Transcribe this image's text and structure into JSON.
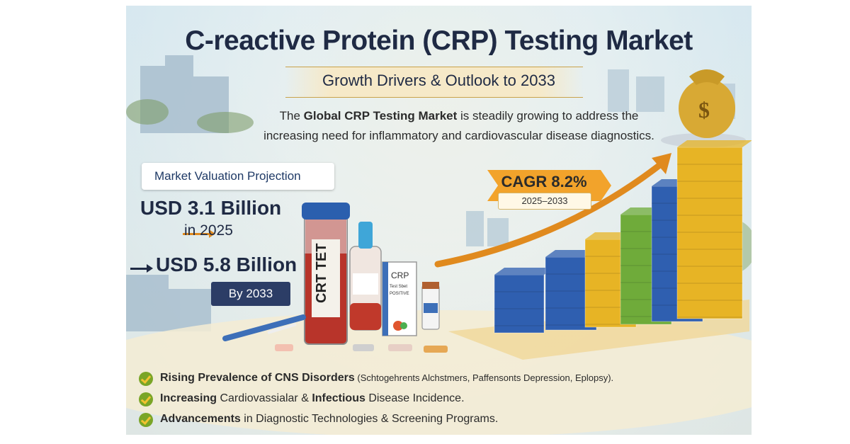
{
  "poster": {
    "title": "C-reactive Protein (CRP) Testing Market",
    "subtitle": "Growth Drivers & Outlook to 2033",
    "intro": {
      "prefix": "The ",
      "bold": "Global CRP Testing Market",
      "suffix": " is steadily growing to address the",
      "line2": "increasing need for inflammatory and cardiovascular disease diagnostics."
    },
    "valuation": {
      "banner": "Market Valuation Projection",
      "value_2025": "USD 3.1 Billion",
      "year_2025": "in 2025",
      "value_2033": "USD 5.8 Billion",
      "year_2033": "By 2033"
    },
    "cagr": {
      "label": "CAGR 8.2%",
      "period": "2025–2033"
    },
    "product_labels": {
      "tube": "CRT TET",
      "box": "CRP",
      "box_sub": "Test Sbet",
      "box_sub2": "POSITIVE"
    },
    "bullets": [
      {
        "bold": "Rising Prevalence of CNS Disorders",
        "rest": " (Schtogehrents Alchstmers, Paffensonts Depression, Eplopsy)."
      },
      {
        "bold": "Increasing",
        "rest": " Cardiovassialar & ",
        "bold2": "Infectious",
        "rest2": " Disease Incidence."
      },
      {
        "bold": "Advancements",
        "rest": " in Diagnostic Technologies & Screening Programs."
      }
    ],
    "colors": {
      "title": "#1f2a44",
      "accent_orange": "#e08a1e",
      "bar_blue": "#2f5fb0",
      "bar_yellow": "#e7b425",
      "bar_green": "#6fab3a",
      "check_green": "#7aa527"
    }
  }
}
